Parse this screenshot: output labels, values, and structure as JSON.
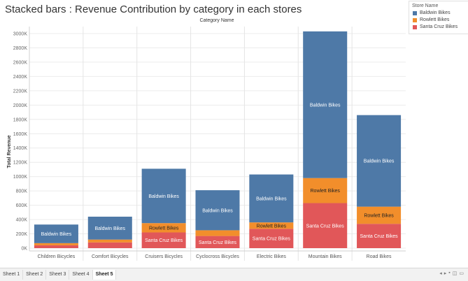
{
  "title": "Stacked bars : Revenue Contribution by category in each stores",
  "legend": {
    "title": "Store Name",
    "items": [
      {
        "label": "Baldwin Bikes",
        "color": "#4e79a7"
      },
      {
        "label": "Rowlett Bikes",
        "color": "#f28e2b"
      },
      {
        "label": "Santa Cruz Bikes",
        "color": "#e15759"
      }
    ]
  },
  "tabs": [
    {
      "label": "Sheet 1",
      "active": false
    },
    {
      "label": "Sheet 2",
      "active": false
    },
    {
      "label": "Sheet 3",
      "active": false
    },
    {
      "label": "Sheet 4",
      "active": false
    },
    {
      "label": "Sheet 5",
      "active": true
    }
  ],
  "tab_controls": [
    "◂",
    "▸",
    "▪",
    "◫",
    "▭"
  ],
  "chart_data": {
    "type": "bar",
    "stacked": true,
    "title": "Stacked bars : Revenue Contribution by category in each stores",
    "xlabel": "Category Name",
    "ylabel": "Total Revenue",
    "ylim": [
      0,
      3000000
    ],
    "yticks": [
      0,
      200000,
      400000,
      600000,
      800000,
      1000000,
      1200000,
      1400000,
      1600000,
      1800000,
      2000000,
      2200000,
      2400000,
      2600000,
      2800000,
      3000000
    ],
    "ytick_labels": [
      "0K",
      "200K",
      "400K",
      "600K",
      "800K",
      "1000K",
      "1200K",
      "1400K",
      "1600K",
      "1800K",
      "2000K",
      "2200K",
      "2400K",
      "2600K",
      "2800K",
      "3000K"
    ],
    "categories": [
      "Children Bicycles",
      "Comfort Bicycles",
      "Cruisers Bicycles",
      "Cyclocross Bicycles",
      "Electric Bikes",
      "Mountain Bikes",
      "Road Bikes"
    ],
    "series": [
      {
        "name": "Santa Cruz Bikes",
        "color": "#e15759",
        "values": [
          40000,
          80000,
          220000,
          170000,
          270000,
          630000,
          340000
        ],
        "labels": [
          "",
          "",
          "Santa Cruz Bikes",
          "Santa Cruz Bikes",
          "Santa Cruz Bikes",
          "Santa Cruz Bikes",
          "Santa Cruz Bikes"
        ]
      },
      {
        "name": "Rowlett Bikes",
        "color": "#f28e2b",
        "values": [
          30000,
          40000,
          130000,
          80000,
          90000,
          350000,
          240000
        ],
        "labels": [
          "",
          "",
          "Rowlett Bikes",
          "",
          "Rowlett Bikes",
          "Rowlett Bikes",
          "Rowlett Bikes"
        ]
      },
      {
        "name": "Baldwin Bikes",
        "color": "#4e79a7",
        "values": [
          260000,
          320000,
          760000,
          560000,
          670000,
          2050000,
          1280000
        ],
        "labels": [
          "Baldwin Bikes",
          "Baldwin Bikes",
          "Baldwin Bikes",
          "Baldwin Bikes",
          "Baldwin Bikes",
          "Baldwin Bikes",
          "Baldwin Bikes"
        ]
      }
    ],
    "grid": true
  }
}
